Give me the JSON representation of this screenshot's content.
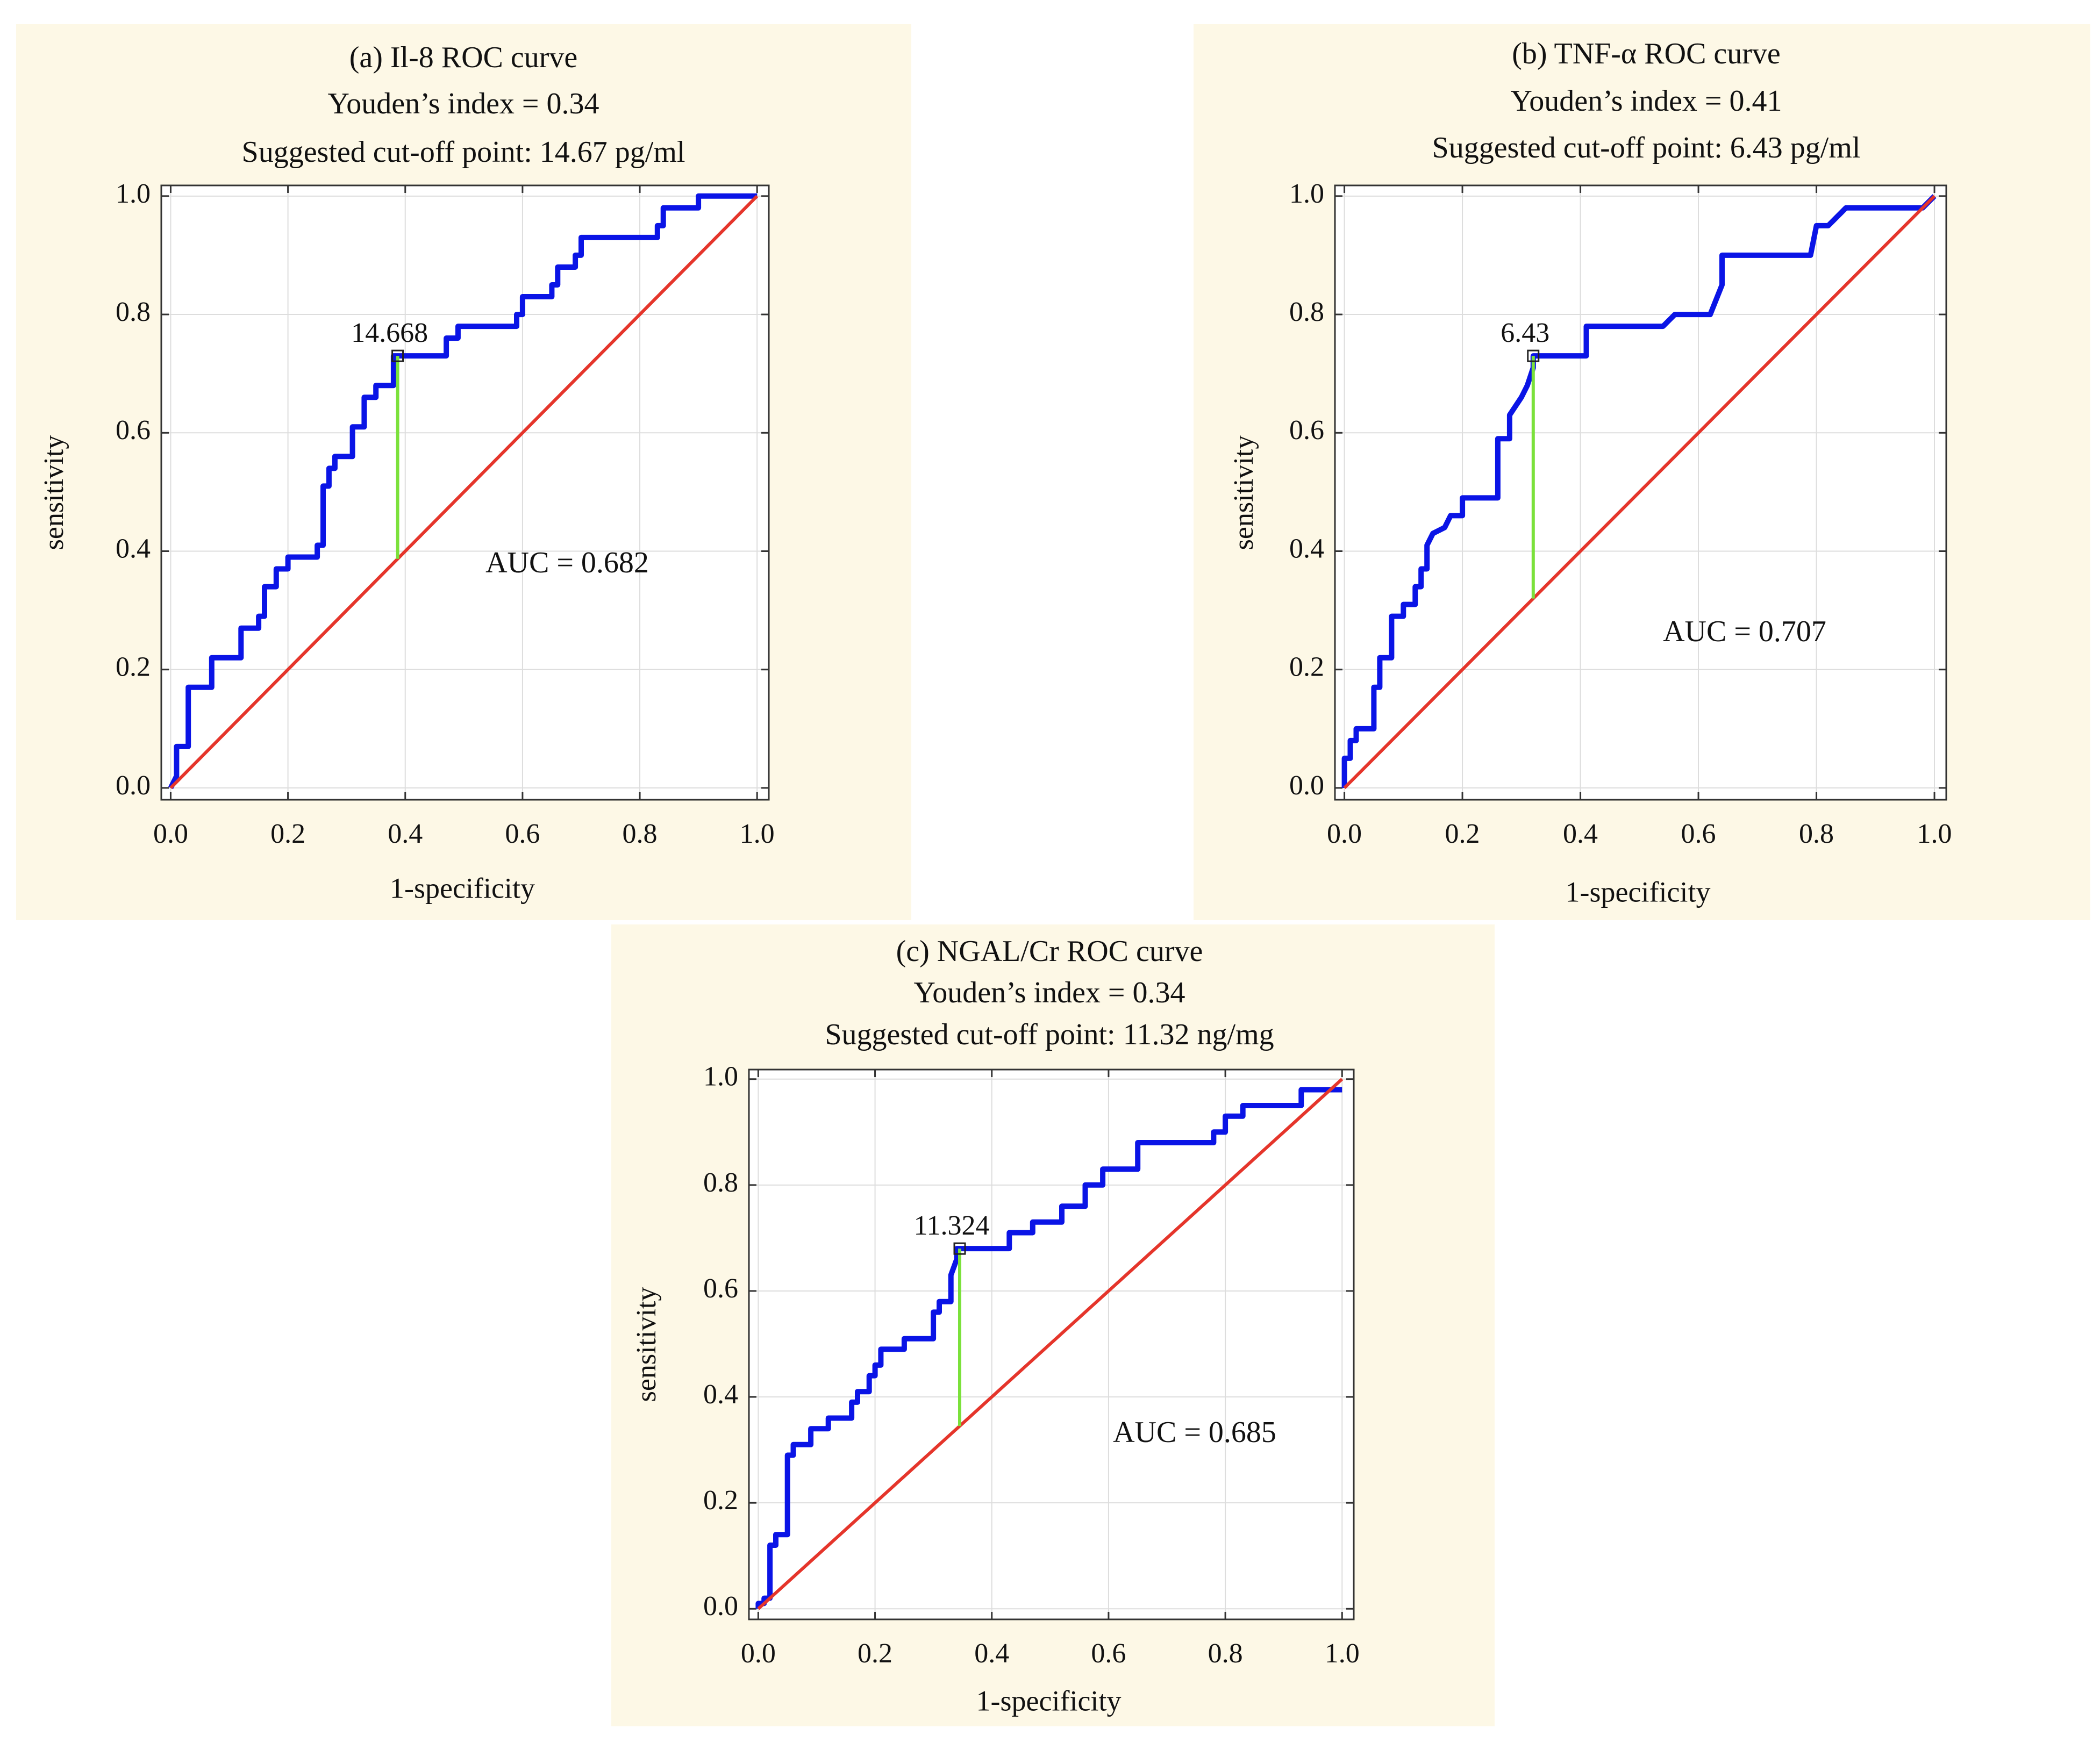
{
  "chart_data": [
    {
      "type": "line",
      "title": "(a) Il-8 ROC curve",
      "subtitle": [
        "Youden’s index = 0.34",
        "Suggested cut-off point: 14.67 pg/ml"
      ],
      "x_label": "1-specificity",
      "y_label": "sensitivity",
      "annotation": "AUC = 0.682",
      "xlim": [
        -0.016,
        1.02
      ],
      "ylim": [
        -0.02,
        1.018
      ],
      "xticks": [
        {
          "value": 0,
          "label": "0.0"
        },
        0.2,
        0.4,
        0.6,
        0.8,
        {
          "value": 1,
          "label": "1.0"
        }
      ],
      "yticks": [
        {
          "value": 0,
          "label": "0.0"
        },
        0.2,
        0.4,
        0.6,
        0.8,
        {
          "value": 1,
          "label": "1.0"
        }
      ],
      "grid": true,
      "series": [
        {
          "color": "#0a14e6",
          "x": [
            0,
            0.01,
            0.01,
            0.03,
            0.03,
            0.07,
            0.07,
            0.12,
            0.12,
            0.15,
            0.15,
            0.16,
            0.16,
            0.18,
            0.18,
            0.2,
            0.2,
            0.25,
            0.25,
            0.26,
            0.26,
            0.27,
            0.27,
            0.28,
            0.28,
            0.31,
            0.31,
            0.33,
            0.33,
            0.35,
            0.35,
            0.38,
            0.38,
            0.47,
            0.47,
            0.49,
            0.49,
            0.59,
            0.59,
            0.6,
            0.6,
            0.65,
            0.65,
            0.66,
            0.66,
            0.69,
            0.69,
            0.7,
            0.7,
            0.83,
            0.83,
            0.84,
            0.84,
            0.9,
            0.9,
            1
          ],
          "values": [
            0,
            0.02,
            0.07,
            0.07,
            0.17,
            0.17,
            0.22,
            0.22,
            0.27,
            0.27,
            0.29,
            0.29,
            0.34,
            0.34,
            0.37,
            0.37,
            0.39,
            0.39,
            0.41,
            0.41,
            0.51,
            0.51,
            0.54,
            0.54,
            0.56,
            0.56,
            0.61,
            0.61,
            0.66,
            0.66,
            0.68,
            0.68,
            0.73,
            0.73,
            0.76,
            0.76,
            0.78,
            0.78,
            0.8,
            0.8,
            0.83,
            0.83,
            0.85,
            0.85,
            0.88,
            0.88,
            0.9,
            0.9,
            0.93,
            0.93,
            0.95,
            0.95,
            0.98,
            0.98,
            1,
            1
          ]
        },
        {
          "color": "#e5352b",
          "x": [
            0,
            1
          ],
          "values": [
            0,
            1
          ]
        },
        {
          "color": "#7be13b",
          "x": [
            0.387,
            0.387
          ],
          "values": [
            0.387,
            0.73
          ]
        }
      ],
      "cutoff": {
        "x": 0.387,
        "value": 0.73,
        "label": "14.668"
      }
    },
    {
      "type": "line",
      "title": "(b) TNF-α ROC curve",
      "subtitle": [
        "Youden’s index = 0.41",
        "Suggested cut-off point: 6.43 pg/ml"
      ],
      "x_label": "1-specificity",
      "y_label": "sensitivity",
      "annotation": "AUC = 0.707",
      "xlim": [
        -0.016,
        1.02
      ],
      "ylim": [
        -0.02,
        1.018
      ],
      "xticks": [
        {
          "value": 0,
          "label": "0.0"
        },
        0.2,
        0.4,
        0.6,
        0.8,
        {
          "value": 1,
          "label": "1.0"
        }
      ],
      "yticks": [
        {
          "value": 0,
          "label": "0.0"
        },
        0.2,
        0.4,
        0.6,
        0.8,
        {
          "value": 1,
          "label": "1.0"
        }
      ],
      "grid": true,
      "series": [
        {
          "color": "#0a14e6",
          "x": [
            0,
            0,
            0.01,
            0.01,
            0.02,
            0.02,
            0.05,
            0.05,
            0.06,
            0.06,
            0.08,
            0.08,
            0.1,
            0.1,
            0.12,
            0.12,
            0.13,
            0.13,
            0.14,
            0.14,
            0.15,
            0.17,
            0.18,
            0.2,
            0.2,
            0.26,
            0.26,
            0.28,
            0.28,
            0.3,
            0.31,
            0.32,
            0.32,
            0.41,
            0.41,
            0.54,
            0.56,
            0.62,
            0.64,
            0.64,
            0.79,
            0.8,
            0.82,
            0.85,
            0.98,
            1
          ],
          "values": [
            0,
            0.05,
            0.05,
            0.08,
            0.08,
            0.1,
            0.1,
            0.17,
            0.17,
            0.22,
            0.22,
            0.29,
            0.29,
            0.31,
            0.31,
            0.34,
            0.34,
            0.37,
            0.37,
            0.41,
            0.43,
            0.44,
            0.46,
            0.46,
            0.49,
            0.49,
            0.59,
            0.59,
            0.63,
            0.66,
            0.68,
            0.71,
            0.73,
            0.73,
            0.78,
            0.78,
            0.8,
            0.8,
            0.85,
            0.9,
            0.9,
            0.95,
            0.95,
            0.98,
            0.98,
            1
          ]
        },
        {
          "color": "#e5352b",
          "x": [
            0,
            1
          ],
          "values": [
            0,
            1
          ]
        },
        {
          "color": "#7be13b",
          "x": [
            0.32,
            0.32
          ],
          "values": [
            0.32,
            0.73
          ]
        }
      ],
      "cutoff": {
        "x": 0.32,
        "value": 0.73,
        "label": "6.43"
      }
    },
    {
      "type": "line",
      "title": "(c) NGAL/Cr ROC curve",
      "subtitle": [
        "Youden’s index = 0.34",
        "Suggested cut-off point: 11.32 ng/mg"
      ],
      "x_label": "1-specificity",
      "y_label": "sensitivity",
      "annotation": "AUC = 0.685",
      "xlim": [
        -0.016,
        1.02
      ],
      "ylim": [
        -0.02,
        1.018
      ],
      "xticks": [
        {
          "value": 0,
          "label": "0.0"
        },
        0.2,
        0.4,
        0.6,
        0.8,
        {
          "value": 1,
          "label": "1.0"
        }
      ],
      "yticks": [
        {
          "value": 0,
          "label": "0.0"
        },
        0.2,
        0.4,
        0.6,
        0.8,
        {
          "value": 1,
          "label": "1.0"
        }
      ],
      "grid": true,
      "series": [
        {
          "color": "#0a14e6",
          "x": [
            0,
            0,
            0.01,
            0.01,
            0.02,
            0.02,
            0.03,
            0.03,
            0.05,
            0.05,
            0.06,
            0.06,
            0.09,
            0.09,
            0.12,
            0.12,
            0.16,
            0.16,
            0.17,
            0.17,
            0.19,
            0.19,
            0.2,
            0.2,
            0.21,
            0.21,
            0.25,
            0.25,
            0.3,
            0.3,
            0.31,
            0.31,
            0.33,
            0.33,
            0.34,
            0.34,
            0.43,
            0.43,
            0.47,
            0.47,
            0.52,
            0.52,
            0.56,
            0.56,
            0.59,
            0.59,
            0.65,
            0.65,
            0.78,
            0.78,
            0.8,
            0.8,
            0.83,
            0.83,
            0.93,
            0.93,
            1
          ],
          "values": [
            0,
            0.01,
            0.01,
            0.02,
            0.02,
            0.12,
            0.12,
            0.14,
            0.14,
            0.29,
            0.29,
            0.31,
            0.31,
            0.34,
            0.34,
            0.36,
            0.36,
            0.39,
            0.39,
            0.41,
            0.41,
            0.44,
            0.44,
            0.46,
            0.46,
            0.49,
            0.49,
            0.51,
            0.51,
            0.56,
            0.56,
            0.58,
            0.58,
            0.63,
            0.66,
            0.68,
            0.68,
            0.71,
            0.71,
            0.73,
            0.73,
            0.76,
            0.76,
            0.8,
            0.8,
            0.83,
            0.83,
            0.88,
            0.88,
            0.9,
            0.9,
            0.93,
            0.93,
            0.95,
            0.95,
            0.98,
            0.98
          ]
        },
        {
          "color": "#e5352b",
          "x": [
            0,
            1
          ],
          "values": [
            0,
            1
          ]
        },
        {
          "color": "#7be13b",
          "x": [
            0.345,
            0.345
          ],
          "values": [
            0.345,
            0.68
          ]
        }
      ],
      "cutoff": {
        "x": 0.345,
        "value": 0.68,
        "label": "11.324"
      }
    }
  ]
}
